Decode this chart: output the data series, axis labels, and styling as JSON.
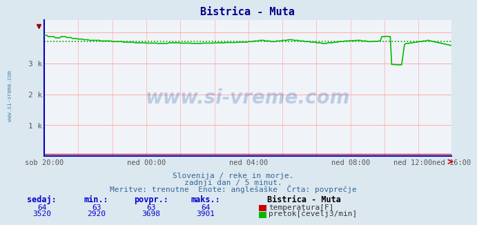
{
  "title": "Bistrica - Muta",
  "bg_color": "#dce8f0",
  "plot_bg_color": "#f0f4f8",
  "grid_color_h": "#ffaaaa",
  "grid_color_v": "#ffaaaa",
  "x_labels": [
    "sob 20:00",
    "ned 00:00",
    "ned 04:00",
    "ned 08:00",
    "ned 12:00",
    "ned 16:00"
  ],
  "ylim": [
    0,
    4400
  ],
  "n_points": 288,
  "flow_avg": 3698,
  "temp_color": "#cc0000",
  "flow_color": "#00bb00",
  "avg_color": "#009900",
  "axis_color": "#0000bb",
  "text_color": "#336699",
  "title_color": "#000088",
  "subtitle1": "Slovenija / reke in morje.",
  "subtitle2": "zadnji dan / 5 minut.",
  "subtitle3": "Meritve: trenutne  Enote: anglešaške  Črta: povprečje",
  "table_header": "Bistrica - Muta",
  "col_sedaj": "sedaj:",
  "col_min": "min.:",
  "col_povpr": "povpr.:",
  "col_maks": "maks.:",
  "temp_sedaj": 64,
  "temp_min": 63,
  "temp_povpr": 63,
  "temp_maks": 64,
  "flow_sedaj": 3520,
  "flow_min_val": 2920,
  "flow_povpr": 3698,
  "flow_maks": 3901,
  "label_temp": "temperatura[F]",
  "label_flow": "pretok[čevelj3/min]",
  "watermark": "www.si-vreme.com",
  "left_label": "www.si-vreme.com",
  "blue_color": "#0000cc",
  "table_val_color": "#0000cc",
  "table_label_color": "#333333"
}
